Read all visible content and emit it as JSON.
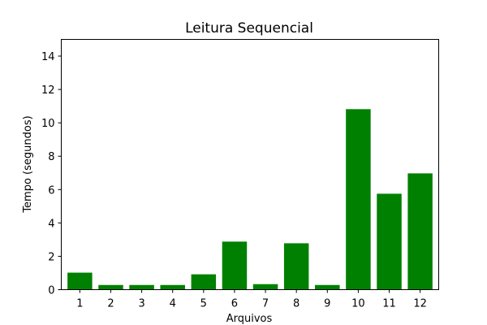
{
  "chart_data": {
    "type": "bar",
    "title": "Leitura Sequencial",
    "xlabel": "Arquivos",
    "ylabel": "Tempo (segundos)",
    "categories": [
      "1",
      "2",
      "3",
      "4",
      "5",
      "6",
      "7",
      "8",
      "9",
      "10",
      "11",
      "12"
    ],
    "values": [
      1.02,
      0.28,
      0.28,
      0.28,
      0.92,
      2.88,
      0.33,
      2.78,
      0.28,
      10.82,
      5.75,
      6.97
    ],
    "ylim": [
      0,
      15
    ],
    "yticks": [
      0,
      2,
      4,
      6,
      8,
      10,
      12,
      14
    ],
    "bar_color": "#008000",
    "grid": false,
    "legend": false
  }
}
